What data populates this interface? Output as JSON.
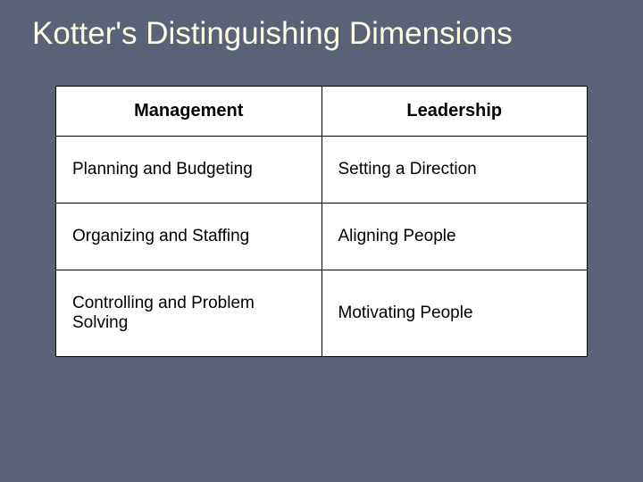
{
  "slide": {
    "title": "Kotter's Distinguishing Dimensions",
    "table": {
      "type": "table",
      "columns": [
        "Management",
        "Leadership"
      ],
      "rows": [
        [
          "Planning and Budgeting",
          "Setting a Direction"
        ],
        [
          "Organizing and Staffing",
          "Aligning People"
        ],
        [
          "Controlling and Problem Solving",
          "Motivating People"
        ]
      ],
      "header_fontsize": 20,
      "header_fontweight": "bold",
      "cell_fontsize": 19,
      "cell_fontweight": "normal",
      "background_color": "#ffffff",
      "border_color": "#000000",
      "text_color": "#000000",
      "column_widths": [
        "50%",
        "50%"
      ]
    },
    "background_color": "#5a6278",
    "title_color": "#fffde6",
    "title_fontsize": 35
  }
}
